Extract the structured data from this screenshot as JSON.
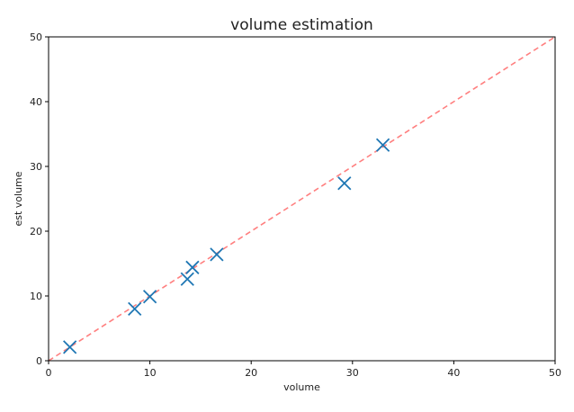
{
  "chart_data": {
    "type": "scatter",
    "title": "volume estimation",
    "xlabel": "volume",
    "ylabel": "est volume",
    "xlim": [
      0,
      50
    ],
    "ylim": [
      0,
      50
    ],
    "xticks": [
      0,
      10,
      20,
      30,
      40,
      50
    ],
    "yticks": [
      0,
      10,
      20,
      30,
      40,
      50
    ],
    "grid": false,
    "series": [
      {
        "marker": "x",
        "color": "#1f77b4",
        "points": [
          {
            "x": 2.1,
            "y": 2.1
          },
          {
            "x": 8.5,
            "y": 8.0
          },
          {
            "x": 10.0,
            "y": 9.9
          },
          {
            "x": 13.7,
            "y": 12.6
          },
          {
            "x": 14.2,
            "y": 14.4
          },
          {
            "x": 16.6,
            "y": 16.4
          },
          {
            "x": 29.2,
            "y": 27.4
          },
          {
            "x": 33.0,
            "y": 33.3
          }
        ]
      }
    ],
    "reference_line": {
      "from": [
        0,
        0
      ],
      "to": [
        50,
        50
      ],
      "color": "#ff7f7f",
      "style": "dashed"
    }
  }
}
